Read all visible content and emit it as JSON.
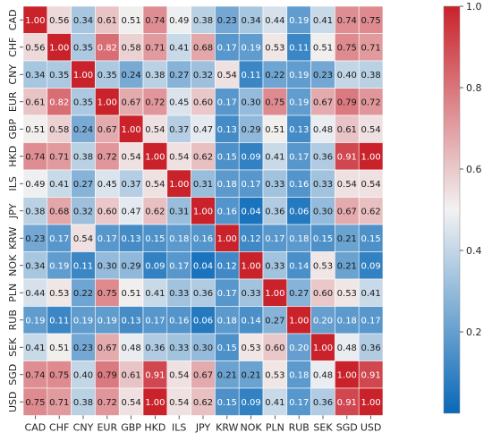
{
  "chart_data": {
    "type": "heatmap",
    "title": "",
    "xlabel": "",
    "ylabel": "",
    "x_categories": [
      "CAD",
      "CHF",
      "CNY",
      "EUR",
      "GBP",
      "HKD",
      "ILS",
      "JPY",
      "KRW",
      "NOK",
      "PLN",
      "RUB",
      "SEK",
      "SGD",
      "USD"
    ],
    "y_categories": [
      "CAD",
      "CHF",
      "CNY",
      "EUR",
      "GBP",
      "HKD",
      "ILS",
      "JPY",
      "KRW",
      "NOK",
      "PLN",
      "RUB",
      "SEK",
      "SGD",
      "USD"
    ],
    "values": [
      [
        1.0,
        0.56,
        0.34,
        0.61,
        0.51,
        0.74,
        0.49,
        0.38,
        0.23,
        0.34,
        0.44,
        0.19,
        0.41,
        0.74,
        0.75
      ],
      [
        0.56,
        1.0,
        0.35,
        0.82,
        0.58,
        0.71,
        0.41,
        0.68,
        0.17,
        0.19,
        0.53,
        0.11,
        0.51,
        0.75,
        0.71
      ],
      [
        0.34,
        0.35,
        1.0,
        0.35,
        0.24,
        0.38,
        0.27,
        0.32,
        0.54,
        0.11,
        0.22,
        0.19,
        0.23,
        0.4,
        0.38
      ],
      [
        0.61,
        0.82,
        0.35,
        1.0,
        0.67,
        0.72,
        0.45,
        0.6,
        0.17,
        0.3,
        0.75,
        0.19,
        0.67,
        0.79,
        0.72
      ],
      [
        0.51,
        0.58,
        0.24,
        0.67,
        1.0,
        0.54,
        0.37,
        0.47,
        0.13,
        0.29,
        0.51,
        0.13,
        0.48,
        0.61,
        0.54
      ],
      [
        0.74,
        0.71,
        0.38,
        0.72,
        0.54,
        1.0,
        0.54,
        0.62,
        0.15,
        0.09,
        0.41,
        0.17,
        0.36,
        0.91,
        1.0
      ],
      [
        0.49,
        0.41,
        0.27,
        0.45,
        0.37,
        0.54,
        1.0,
        0.31,
        0.18,
        0.17,
        0.33,
        0.16,
        0.33,
        0.54,
        0.54
      ],
      [
        0.38,
        0.68,
        0.32,
        0.6,
        0.47,
        0.62,
        0.31,
        1.0,
        0.16,
        0.04,
        0.36,
        0.06,
        0.3,
        0.67,
        0.62
      ],
      [
        0.23,
        0.17,
        0.54,
        0.17,
        0.13,
        0.15,
        0.18,
        0.16,
        1.0,
        0.12,
        0.17,
        0.18,
        0.15,
        0.21,
        0.15
      ],
      [
        0.34,
        0.19,
        0.11,
        0.3,
        0.29,
        0.09,
        0.17,
        0.04,
        0.12,
        1.0,
        0.33,
        0.14,
        0.53,
        0.21,
        0.09
      ],
      [
        0.44,
        0.53,
        0.22,
        0.75,
        0.51,
        0.41,
        0.33,
        0.36,
        0.17,
        0.33,
        1.0,
        0.27,
        0.6,
        0.53,
        0.41
      ],
      [
        0.19,
        0.11,
        0.19,
        0.19,
        0.13,
        0.17,
        0.16,
        0.06,
        0.18,
        0.14,
        0.27,
        1.0,
        0.2,
        0.18,
        0.17
      ],
      [
        0.41,
        0.51,
        0.23,
        0.67,
        0.48,
        0.36,
        0.33,
        0.3,
        0.15,
        0.53,
        0.6,
        0.2,
        1.0,
        0.48,
        0.36
      ],
      [
        0.74,
        0.75,
        0.4,
        0.79,
        0.61,
        0.91,
        0.54,
        0.67,
        0.21,
        0.21,
        0.53,
        0.18,
        0.48,
        1.0,
        0.91
      ],
      [
        0.75,
        0.71,
        0.38,
        0.72,
        0.54,
        1.0,
        0.54,
        0.62,
        0.15,
        0.09,
        0.41,
        0.17,
        0.36,
        0.91,
        1.0
      ]
    ],
    "colorscale": {
      "name": "coolwarm-like (blue-white-red)",
      "min": 0.0,
      "max": 1.0,
      "low_color": "#0868b8",
      "mid_color": "#f2f2f2",
      "high_color": "#c9222b"
    },
    "colorbar": {
      "ticks": [
        0.2,
        0.4,
        0.6,
        0.8,
        1.0
      ],
      "tick_labels": [
        "0.2",
        "0.4",
        "0.6",
        "0.8",
        "1.0"
      ]
    },
    "grid": false,
    "legend": "colorbar-right"
  }
}
